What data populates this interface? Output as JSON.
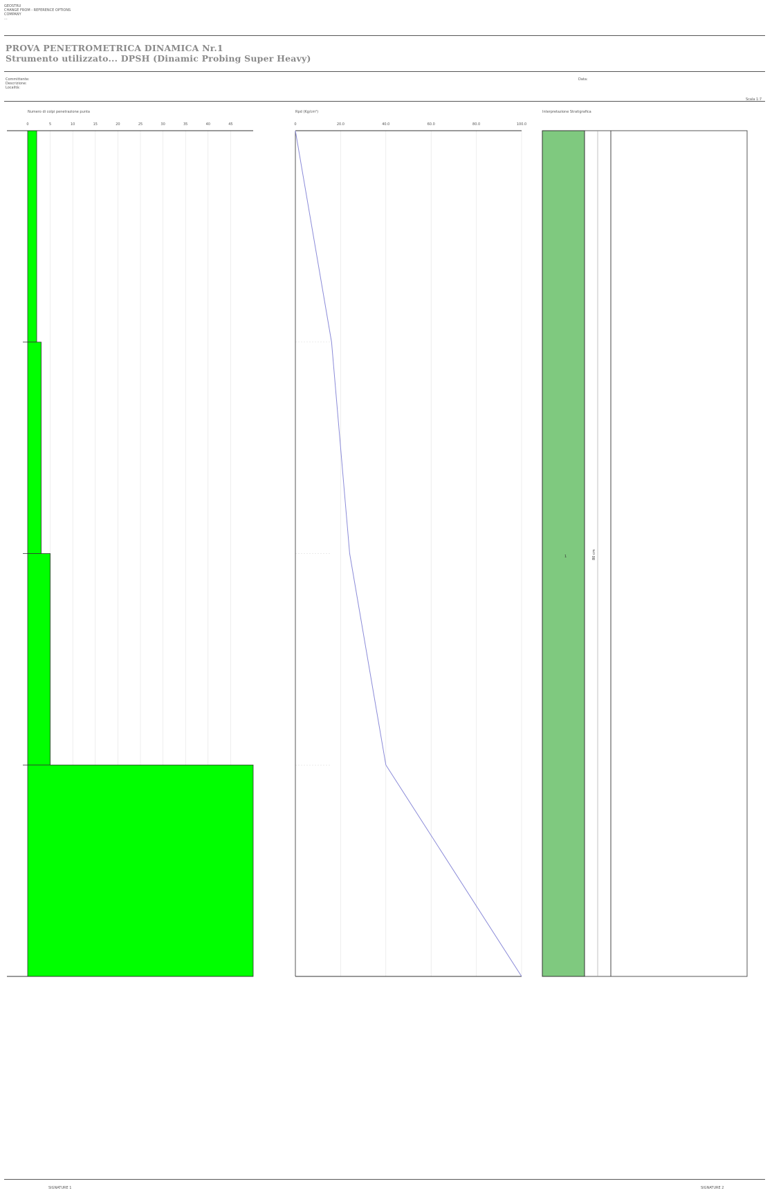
{
  "header": {
    "company_lines": [
      "GEOSTRU",
      "CHANGE FROM - REFERENCE OPTIONS",
      "COMPANY",
      "..."
    ],
    "title": "PROVA PENETROMETRICA DINAMICA Nr.1",
    "subtitle": "Strumento utilizzato... DPSH (Dinamic Probing Super Heavy)",
    "left_fields": [
      "Committente:",
      "Descrizione:",
      "Località:"
    ],
    "date_label": "Data:",
    "scale_label": "Scala 1:7"
  },
  "footer": {
    "left": "SIGNATURE 1",
    "right": "SIGNATURE 2"
  },
  "chart_data": [
    {
      "type": "bar",
      "title": "Numero di colpi penetrazione punta",
      "orientation": "horizontal-steps",
      "xlim": [
        0,
        50
      ],
      "xticks": [
        "0",
        "5",
        "10",
        "15",
        "20",
        "25",
        "30",
        "35",
        "40",
        "45"
      ],
      "segments": [
        {
          "depth_from": 0,
          "depth_to": 1,
          "value": 2
        },
        {
          "depth_from": 1,
          "depth_to": 2,
          "value": 3
        },
        {
          "depth_from": 2,
          "depth_to": 3,
          "value": 5
        },
        {
          "depth_from": 3,
          "depth_to": 4,
          "value": 50
        }
      ],
      "color": "#00ff00"
    },
    {
      "type": "line",
      "title": "Rpd (Kg/cm²)",
      "xlim": [
        0,
        100
      ],
      "xticks": [
        "0",
        "20.0",
        "40.0",
        "60.0",
        "80.0",
        "100.0"
      ],
      "x": [
        0,
        16,
        24,
        40,
        100
      ],
      "y": [
        0,
        1,
        2,
        3,
        4
      ],
      "color": "#8a8ad8"
    },
    {
      "type": "table",
      "title": "Interpretazione Stratigrafica",
      "layers": [
        {
          "label": "1",
          "depth_from": 0,
          "depth_to": 4,
          "thickness_label": "80 cm",
          "color": "#7fc97f"
        }
      ]
    }
  ]
}
